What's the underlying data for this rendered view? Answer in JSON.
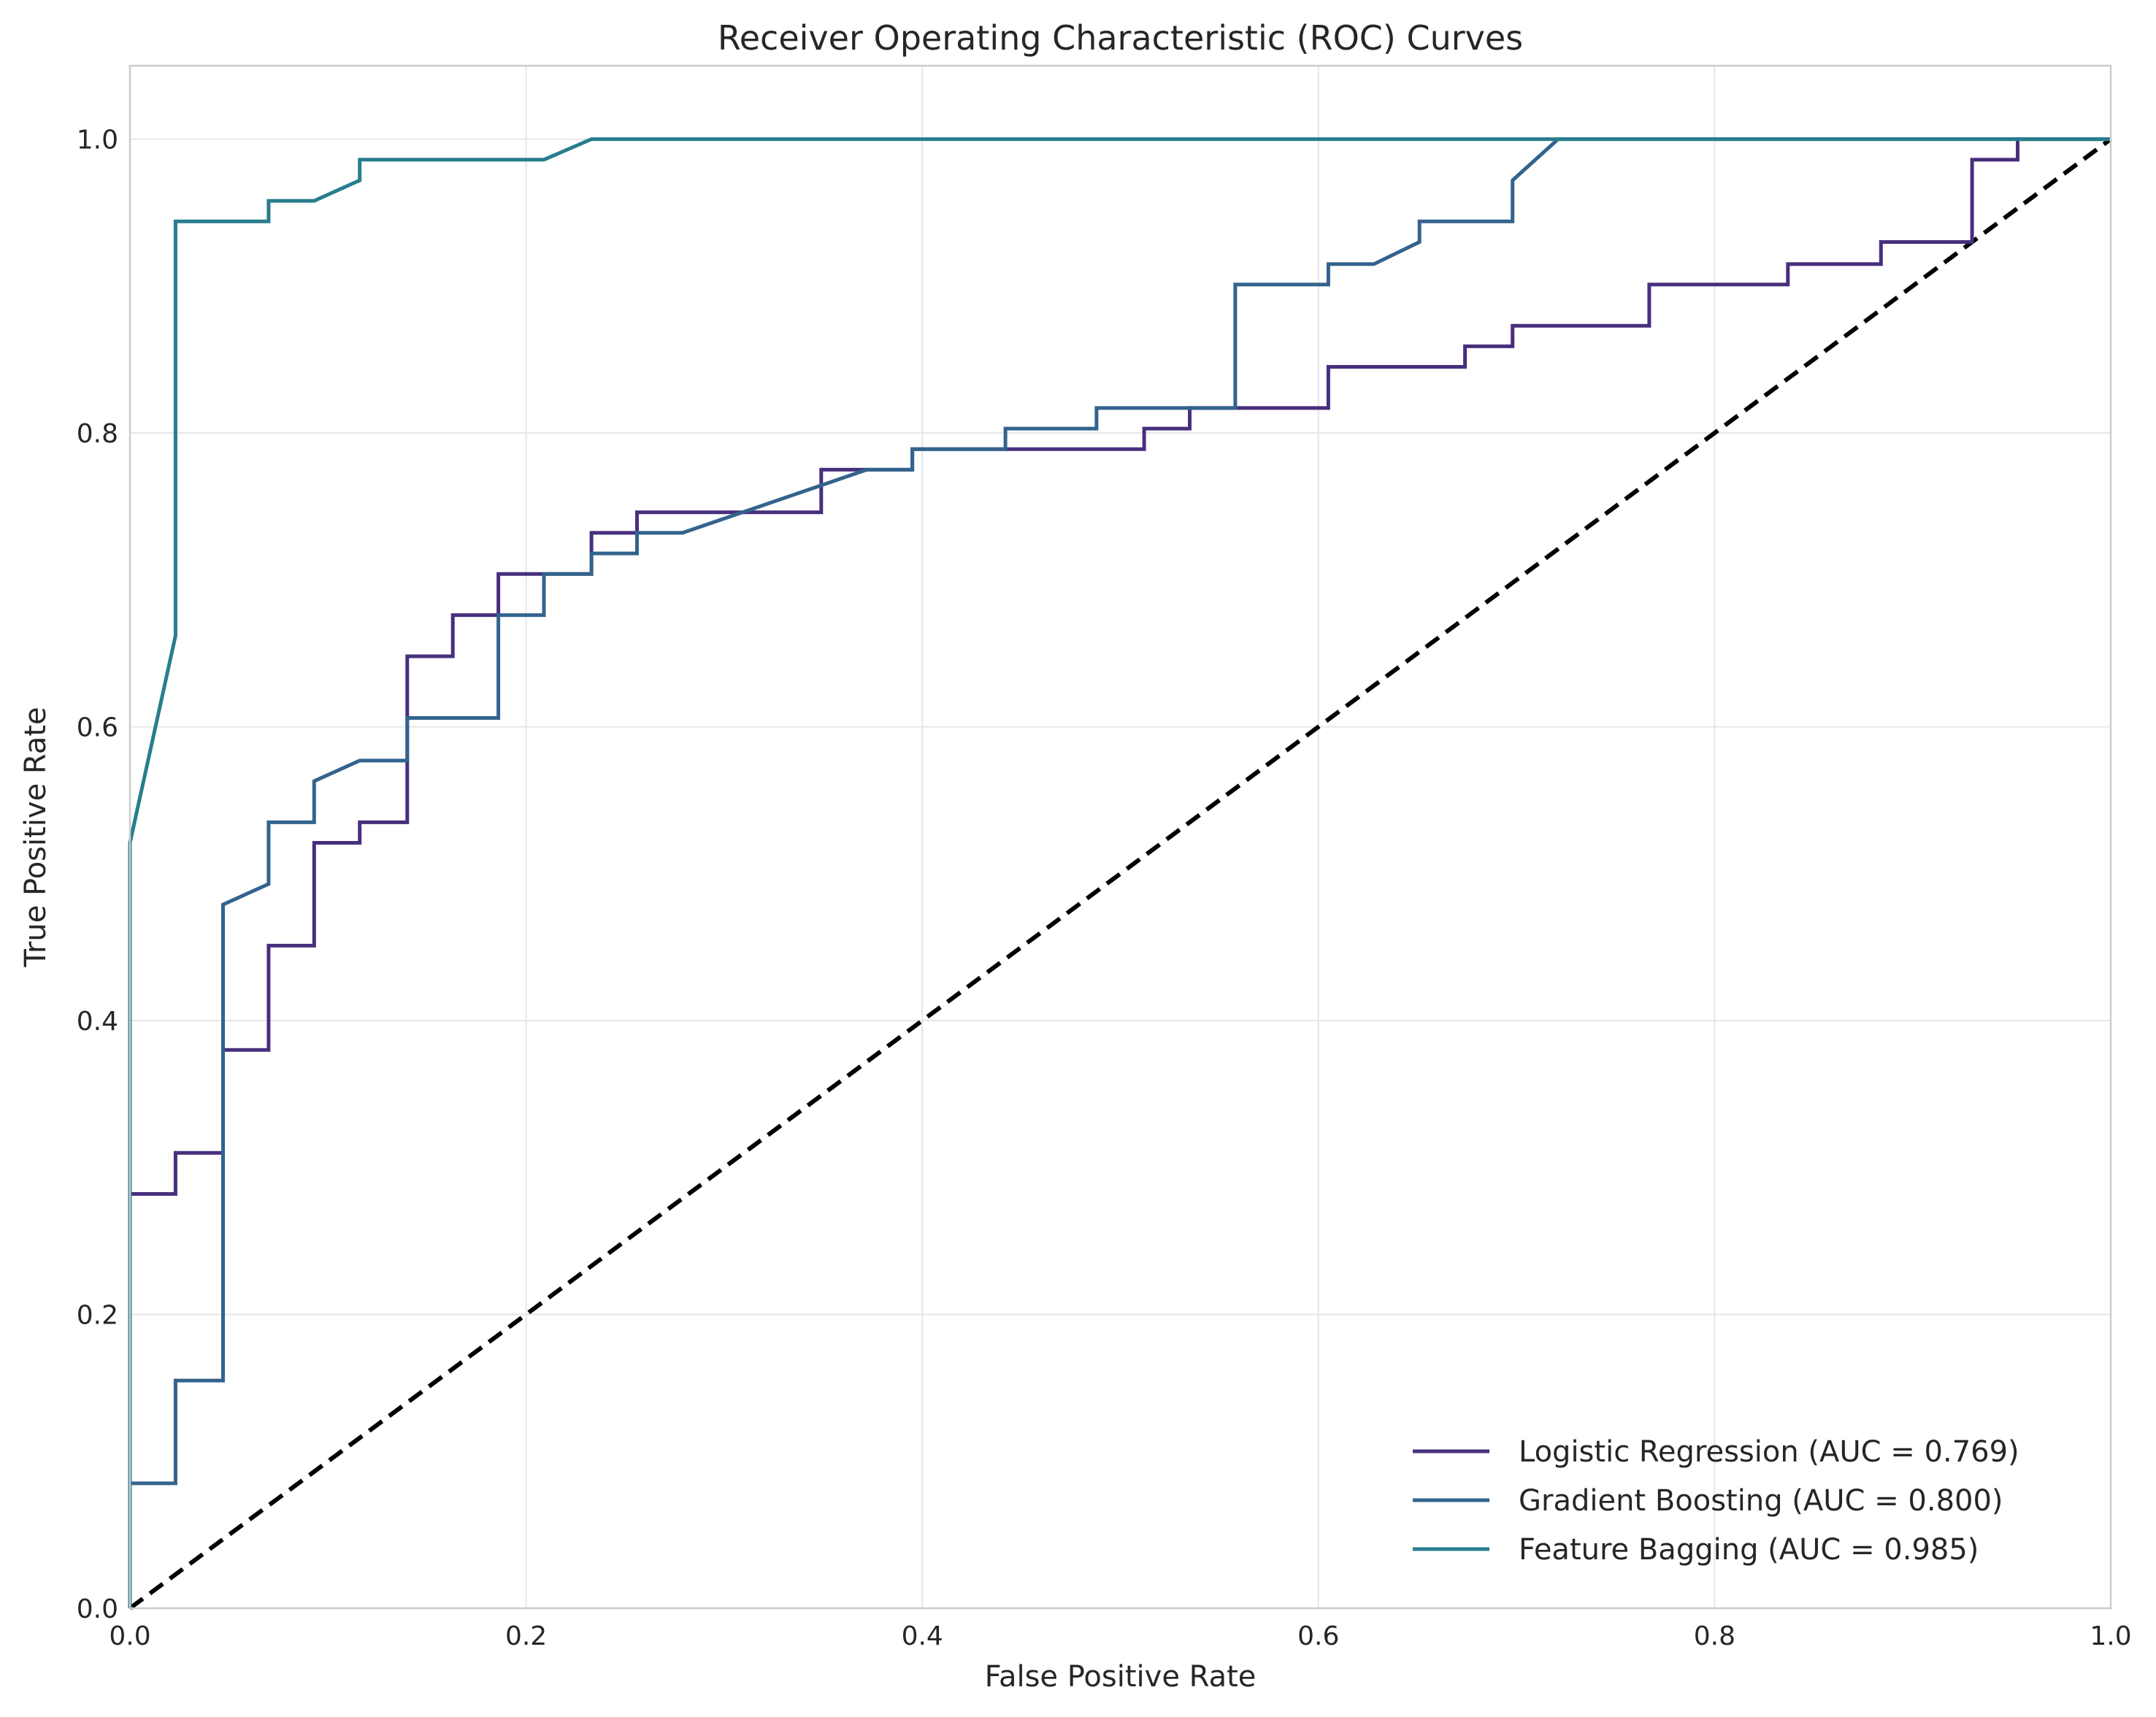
{
  "chart_data": {
    "type": "line",
    "title": "Receiver Operating Characteristic (ROC) Curves",
    "xlabel": "False Positive Rate",
    "ylabel": "True Positive Rate",
    "xlim": [
      0.0,
      1.0
    ],
    "ylim": [
      0.0,
      1.05
    ],
    "xticks": [
      "0.0",
      "0.2",
      "0.4",
      "0.6",
      "0.8",
      "1.0"
    ],
    "yticks": [
      "0.0",
      "0.2",
      "0.4",
      "0.6",
      "0.8",
      "1.0"
    ],
    "grid": true,
    "legend_position": "lower-right",
    "series": [
      {
        "name": "Logistic Regression (AUC = 0.769)",
        "color": "#472f7d",
        "x": [
          0.0,
          0.0,
          0.023,
          0.023,
          0.047,
          0.047,
          0.07,
          0.07,
          0.093,
          0.093,
          0.116,
          0.116,
          0.14,
          0.14,
          0.163,
          0.163,
          0.186,
          0.186,
          0.233,
          0.233,
          0.256,
          0.256,
          0.349,
          0.349,
          0.395,
          0.395,
          0.512,
          0.512,
          0.535,
          0.535,
          0.605,
          0.605,
          0.674,
          0.674,
          0.698,
          0.698,
          0.767,
          0.767,
          0.837,
          0.837,
          0.884,
          0.884,
          0.93,
          0.93,
          0.953,
          0.953,
          1.0
        ],
        "y": [
          0.0,
          0.282,
          0.282,
          0.31,
          0.31,
          0.38,
          0.38,
          0.451,
          0.451,
          0.521,
          0.521,
          0.535,
          0.535,
          0.648,
          0.648,
          0.676,
          0.676,
          0.704,
          0.704,
          0.732,
          0.732,
          0.746,
          0.746,
          0.775,
          0.775,
          0.789,
          0.789,
          0.803,
          0.803,
          0.817,
          0.817,
          0.845,
          0.845,
          0.859,
          0.859,
          0.873,
          0.873,
          0.901,
          0.901,
          0.915,
          0.915,
          0.93,
          0.93,
          0.986,
          0.986,
          1.0,
          1.0
        ]
      },
      {
        "name": "Gradient Boosting (AUC = 0.800)",
        "color": "#33638d",
        "x": [
          0.0,
          0.0,
          0.023,
          0.023,
          0.047,
          0.047,
          0.07,
          0.07,
          0.093,
          0.093,
          0.116,
          0.14,
          0.14,
          0.186,
          0.186,
          0.209,
          0.209,
          0.233,
          0.233,
          0.256,
          0.256,
          0.279,
          0.372,
          0.395,
          0.395,
          0.442,
          0.442,
          0.488,
          0.488,
          0.558,
          0.558,
          0.605,
          0.605,
          0.628,
          0.651,
          0.651,
          0.698,
          0.698,
          0.721,
          1.0
        ],
        "y": [
          0.0,
          0.085,
          0.085,
          0.155,
          0.155,
          0.479,
          0.493,
          0.535,
          0.535,
          0.563,
          0.577,
          0.577,
          0.606,
          0.606,
          0.676,
          0.676,
          0.704,
          0.704,
          0.718,
          0.718,
          0.732,
          0.732,
          0.775,
          0.775,
          0.789,
          0.789,
          0.803,
          0.803,
          0.817,
          0.817,
          0.901,
          0.901,
          0.915,
          0.915,
          0.93,
          0.944,
          0.944,
          0.972,
          1.0,
          1.0
        ]
      },
      {
        "name": "Feature Bagging (AUC = 0.985)",
        "color": "#287d8e",
        "x": [
          0.0,
          0.0,
          0.023,
          0.023,
          0.07,
          0.07,
          0.093,
          0.116,
          0.116,
          0.209,
          0.233,
          1.0
        ],
        "y": [
          0.0,
          0.521,
          0.662,
          0.944,
          0.944,
          0.958,
          0.958,
          0.972,
          0.986,
          0.986,
          1.0,
          1.0
        ]
      },
      {
        "name": "",
        "color": "#000000",
        "style": "dashed",
        "x": [
          0.0,
          1.0
        ],
        "y": [
          0.0,
          1.0
        ]
      }
    ]
  }
}
